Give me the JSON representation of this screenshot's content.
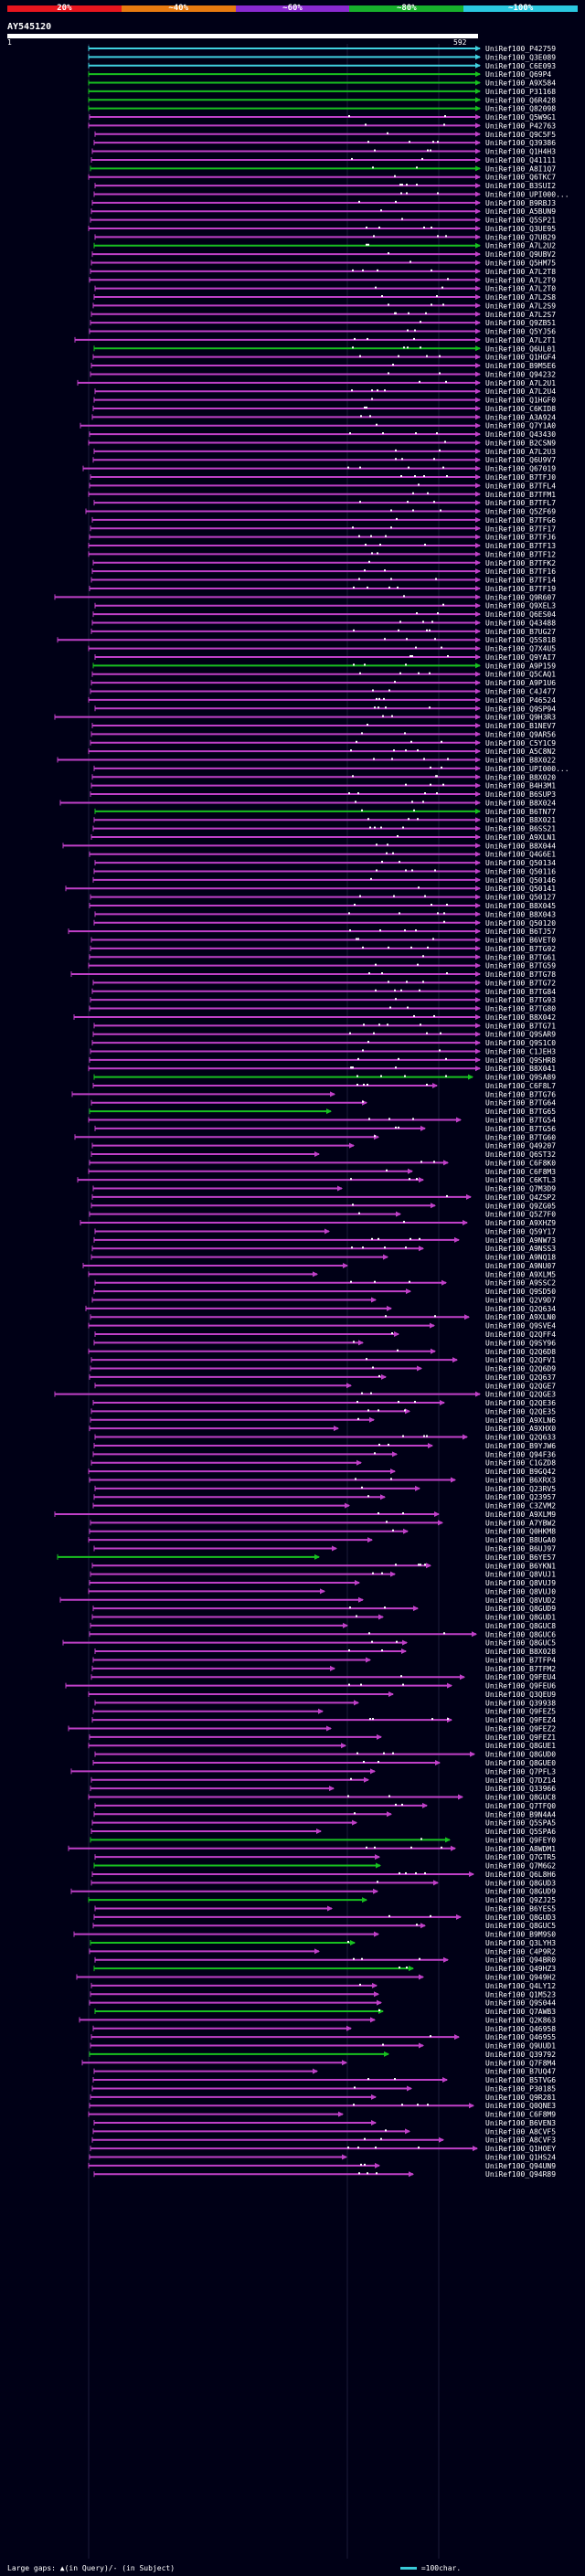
{
  "scale": {
    "ticks": [
      "20%",
      "~40%",
      "~60%",
      "~80%",
      "~100%"
    ],
    "colors": [
      "#e8151e",
      "#e87a10",
      "#8a2ad0",
      "#17b02c",
      "#2ac8e0"
    ]
  },
  "query": {
    "id": "AY545120",
    "start": "1",
    "end": "592"
  },
  "hit_colors": {
    "magenta": "#c040c8",
    "green": "#18c020",
    "cyan": "#40d0e0",
    "white": "#ffffff"
  },
  "hits": [
    "UniRef100_P42759",
    "UniRef100_Q3E089",
    "UniRef100_C6E093",
    "UniRef100_Q69P4",
    "UniRef100_A9X584",
    "UniRef100_P31168",
    "UniRef100_Q6R428",
    "UniRef100_Q82098",
    "UniRef100_Q5W9G1",
    "UniRef100_P42763",
    "UniRef100_Q9C5F5",
    "UniRef100_Q39386",
    "UniRef100_Q1H4H3",
    "UniRef100_Q41111",
    "UniRef100_A8I1Q7",
    "UniRef100_Q6TKC7",
    "UniRef100_B3SUI2",
    "UniRef100_UPI000...",
    "UniRef100_B9RBJ3",
    "UniRef100_A5BUN9",
    "UniRef100_Q5SP21",
    "UniRef100_Q3UE95",
    "UniRef100_Q7UB29",
    "UniRef100_A7L2U2",
    "UniRef100_Q9UBV2",
    "UniRef100_Q5HM75",
    "UniRef100_A7L2T8",
    "UniRef100_A7L2T9",
    "UniRef100_A7L2T0",
    "UniRef100_A7L2S8",
    "UniRef100_A7L2S9",
    "UniRef100_A7L2S7",
    "UniRef100_Q9ZB51",
    "UniRef100_Q5YJ56",
    "UniRef100_A7L2T1",
    "UniRef100_Q6UL01",
    "UniRef100_Q1HGF4",
    "UniRef100_B9M5E6",
    "UniRef100_Q94232",
    "UniRef100_A7L2U1",
    "UniRef100_A7L2U4",
    "UniRef100_Q1HGF0",
    "UniRef100_C6KID8",
    "UniRef100_A3A924",
    "UniRef100_Q7Y1A0",
    "UniRef100_Q43430",
    "UniRef100_B2CSN9",
    "UniRef100_A7L2U3",
    "UniRef100_Q6U9V7",
    "UniRef100_Q67019",
    "UniRef100_B7TFJ0",
    "UniRef100_B7TFL4",
    "UniRef100_B7TFM1",
    "UniRef100_B7TFL7",
    "UniRef100_Q5ZF69",
    "UniRef100_B7TFG6",
    "UniRef100_B7TF17",
    "UniRef100_B7TFJ6",
    "UniRef100_B7TF13",
    "UniRef100_B7TF12",
    "UniRef100_B7TFK2",
    "UniRef100_B7TF16",
    "UniRef100_B7TF14",
    "UniRef100_B7TF19",
    "UniRef100_Q9R607",
    "UniRef100_Q9XEL3",
    "UniRef100_Q6ES04",
    "UniRef100_Q43488",
    "UniRef100_B7UG27",
    "UniRef100_Q5S818",
    "UniRef100_Q7X4U5",
    "UniRef100_Q9YAI7",
    "UniRef100_A9P159",
    "UniRef100_Q5CAQ1",
    "UniRef100_A9P1U6",
    "UniRef100_C4J477",
    "UniRef100_P46524",
    "UniRef100_Q9SP94",
    "UniRef100_Q9H3R3",
    "UniRef100_B1NEV7",
    "UniRef100_Q9AR56",
    "UniRef100_C5Y1C9",
    "UniRef100_A5C8N2",
    "UniRef100_B8X022",
    "UniRef100_UPI000...",
    "UniRef100_B8X020",
    "UniRef100_B4H3M1",
    "UniRef100_B6SUP3",
    "UniRef100_B8X024",
    "UniRef100_B6TN77",
    "UniRef100_B8X021",
    "UniRef100_B6SS21",
    "UniRef100_A9XLN1",
    "UniRef100_B8X044",
    "UniRef100_Q4G6E1",
    "UniRef100_Q50134",
    "UniRef100_Q50116",
    "UniRef100_Q50146",
    "UniRef100_Q50141",
    "UniRef100_Q50127",
    "UniRef100_B8X045",
    "UniRef100_B8X043",
    "UniRef100_Q50120",
    "UniRef100_B6TJ57",
    "UniRef100_B6VET0",
    "UniRef100_B7TG92",
    "UniRef100_B7TG61",
    "UniRef100_B7TG59",
    "UniRef100_B7TG78",
    "UniRef100_B7TG72",
    "UniRef100_B7TG84",
    "UniRef100_B7TG93",
    "UniRef100_B7TG80",
    "UniRef100_B8X042",
    "UniRef100_B7TG71",
    "UniRef100_Q9SAR9",
    "UniRef100_Q9S1C0",
    "UniRef100_C1JEH3",
    "UniRef100_Q9SHR8",
    "UniRef100_B8X041",
    "UniRef100_Q9SA89",
    "UniRef100_C6F8L7",
    "UniRef100_B7TG76",
    "UniRef100_B7TG64",
    "UniRef100_B7TG65",
    "UniRef100_B7TG54",
    "UniRef100_B7TG56",
    "UniRef100_B7TG60",
    "UniRef100_Q49207",
    "UniRef100_Q6ST32",
    "UniRef100_C6F8K0",
    "UniRef100_C6F8M3",
    "UniRef100_C6KTL3",
    "UniRef100_Q7M3D9",
    "UniRef100_Q4ZSP2",
    "UniRef100_Q9ZG05",
    "UniRef100_Q5Z7F0",
    "UniRef100_A9XHZ9",
    "UniRef100_Q59Y17",
    "UniRef100_A9NW73",
    "UniRef100_A9NSS3",
    "UniRef100_A9NQ18",
    "UniRef100_A9NU07",
    "UniRef100_A9XLM5",
    "UniRef100_A9SSC2",
    "UniRef100_Q9SD50",
    "UniRef100_Q2V9D7",
    "UniRef100_Q2Q634",
    "UniRef100_A9XLN0",
    "UniRef100_Q9SVE4",
    "UniRef100_Q2QFF4",
    "UniRef100_Q9SY96",
    "UniRef100_Q2Q6D8",
    "UniRef100_Q2QFV1",
    "UniRef100_Q2Q6D9",
    "UniRef100_Q2Q637",
    "UniRef100_Q2QGE7",
    "UniRef100_Q2QGE3",
    "UniRef100_Q2QE36",
    "UniRef100_Q2QE35",
    "UniRef100_A9XLN6",
    "UniRef100_A9XHX0",
    "UniRef100_Q2Q633",
    "UniRef100_B9YJW6",
    "UniRef100_Q94F36",
    "UniRef100_C1GZD8",
    "UniRef100_B9GQ42",
    "UniRef100_B6XRX3",
    "UniRef100_Q23RV5",
    "UniRef100_Q23957",
    "UniRef100_C3ZVM2",
    "UniRef100_A9XLM9",
    "UniRef100_A7YBW2",
    "UniRef100_Q0HKM8",
    "UniRef100_B8UGA0",
    "UniRef100_B6UJ97",
    "UniRef100_B6YE57",
    "UniRef100_B6YKN1",
    "UniRef100_Q8VUJ1",
    "UniRef100_Q8VUJ9",
    "UniRef100_Q8VUJ0",
    "UniRef100_Q8VUD2",
    "UniRef100_Q8GUD9",
    "UniRef100_Q8GUD1",
    "UniRef100_Q8GUC8",
    "UniRef100_Q8GUC6",
    "UniRef100_Q8GUC5",
    "UniRef100_B8X028",
    "UniRef100_B7TFP4",
    "UniRef100_B7TFM2",
    "UniRef100_Q9FEU4",
    "UniRef100_Q9FEU6",
    "UniRef100_Q3QEU9",
    "UniRef100_Q39938",
    "UniRef100_Q9FEZ5",
    "UniRef100_Q9FEZ4",
    "UniRef100_Q9FEZ2",
    "UniRef100_Q9FEZ1",
    "UniRef100_Q8GUE1",
    "UniRef100_Q8GUD0",
    "UniRef100_Q8GUE0",
    "UniRef100_Q7PFL3",
    "UniRef100_Q7DZ14",
    "UniRef100_Q33966",
    "UniRef100_Q8GUC8",
    "UniRef100_Q7TFQ0",
    "UniRef100_B9N4A4",
    "UniRef100_Q5SPA5",
    "UniRef100_Q5SPA6",
    "UniRef100_Q9FEY0",
    "UniRef100_A8WDM1",
    "UniRef100_Q7GTR5",
    "UniRef100_Q7M6G2",
    "UniRef100_Q6L8H6",
    "UniRef100_Q8GUD3",
    "UniRef100_Q8GUD9",
    "UniRef100_Q9ZJ25",
    "UniRef100_B6YES5",
    "UniRef100_Q8GUD3",
    "UniRef100_Q8GUC5",
    "UniRef100_B9M9S0",
    "UniRef100_Q3LYH3",
    "UniRef100_C4P9R2",
    "UniRef100_Q94BR0",
    "UniRef100_Q49HZ3",
    "UniRef100_Q949H2",
    "UniRef100_Q4LY12",
    "UniRef100_Q1M523",
    "UniRef100_Q9S044",
    "UniRef100_Q7AWB3",
    "UniRef100_Q2K863",
    "UniRef100_Q46958",
    "UniRef100_Q46955",
    "UniRef100_Q9UUD1",
    "UniRef100_Q39792",
    "UniRef100_Q7F8M4",
    "UniRef100_B7UQ47",
    "UniRef100_B5TVG6",
    "UniRef100_P30185",
    "UniRef100_Q9R281",
    "UniRef100_Q0QNE3",
    "UniRef100_C6F8M9",
    "UniRef100_B6VEN3",
    "UniRef100_A8CVF5",
    "UniRef100_A8CVF3",
    "UniRef100_Q1HOEY",
    "UniRef100_Q1HS24",
    "UniRef100_Q94UN9",
    "UniRef100_Q94R89"
  ],
  "legend": {
    "left": "Large gaps: ▲(in Query)/- (in Subject)",
    "right": "=100char."
  }
}
